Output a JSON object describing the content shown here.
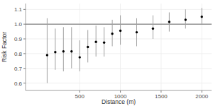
{
  "chart_data": {
    "type": "scatter",
    "x_label": "Distance (m)",
    "y_label": "Risk Factor",
    "x": [
      100,
      200,
      300,
      400,
      500,
      600,
      700,
      800,
      900,
      1000,
      1200,
      1400,
      1600,
      1800,
      2000
    ],
    "values": [
      0.79,
      0.81,
      0.815,
      0.815,
      0.775,
      0.845,
      0.88,
      0.875,
      0.935,
      0.955,
      0.945,
      0.97,
      1.015,
      1.03,
      1.05
    ],
    "lower": [
      0.6,
      0.69,
      0.68,
      0.7,
      0.68,
      0.74,
      0.78,
      0.78,
      0.85,
      0.86,
      0.85,
      0.9,
      0.95,
      0.97,
      1.0
    ],
    "upper": [
      1.04,
      0.97,
      0.98,
      0.98,
      0.89,
      0.96,
      0.99,
      0.98,
      1.03,
      1.06,
      1.04,
      1.06,
      1.08,
      1.1,
      1.11
    ],
    "reference_line": 1.0,
    "color": "#000000",
    "marker": "circle",
    "xlim": [
      -165,
      2120
    ],
    "xticks": [
      500,
      1000,
      1500,
      2000
    ],
    "ylim": [
      0.55,
      1.14
    ],
    "yticks": [
      0.6,
      0.7,
      0.8,
      0.9,
      {
        "value": 1.0,
        "label": "1.0"
      },
      1.1
    ],
    "grid": true
  }
}
